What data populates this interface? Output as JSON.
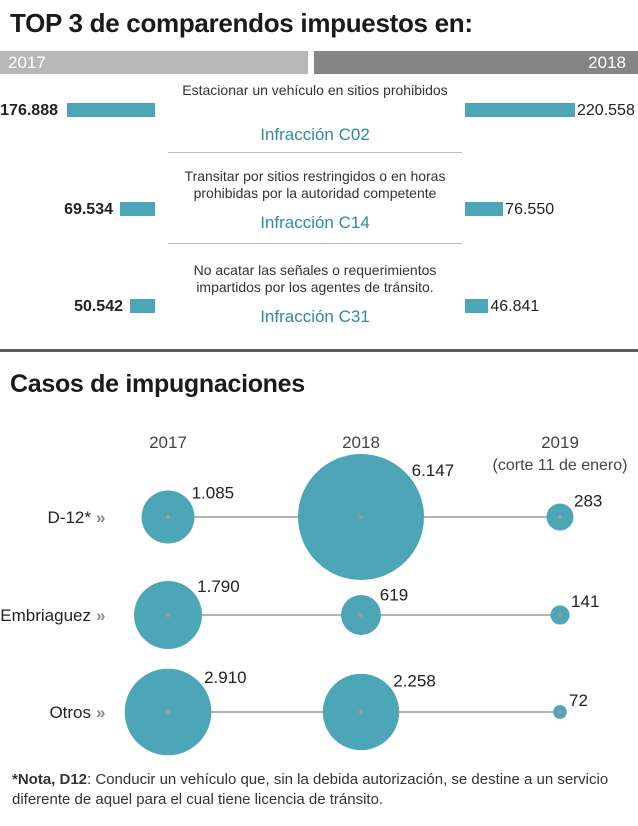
{
  "top": {
    "title": "TOP 3 de comparendos impuestos en:",
    "year_left": "2017",
    "year_right": "2018"
  },
  "chart_data": [
    {
      "type": "bar",
      "title": "TOP 3 de comparendos impuestos en:",
      "categories": [
        "Infracción C02",
        "Infracción C14",
        "Infracción C31"
      ],
      "descriptions": [
        "Estacionar un vehículo en sitios prohibidos",
        "Transitar por sitios restringidos o en horas prohibidas por la autoridad competente",
        "No acatar las señales o requerimientos impartidos por los agentes de tránsito."
      ],
      "series": [
        {
          "name": "2017",
          "values": [
            176888,
            69534,
            50542
          ],
          "labels": [
            "176.888",
            "69.534",
            "50.542"
          ]
        },
        {
          "name": "2018",
          "values": [
            220558,
            76550,
            46841
          ],
          "labels": [
            "220.558",
            "76.550",
            "46.841"
          ]
        }
      ],
      "color": "#4da6b8"
    },
    {
      "type": "scatter",
      "title": "Casos de impugnaciones",
      "x": [
        "2017",
        "2018",
        "2019"
      ],
      "x_sublabels": [
        "",
        "",
        "(corte 11 de enero)"
      ],
      "categories": [
        "D-12*",
        "Embriaguez",
        "Otros"
      ],
      "series": [
        {
          "name": "D-12*",
          "values": [
            1085,
            6147,
            283
          ],
          "labels": [
            "1.085",
            "6.147",
            "283"
          ]
        },
        {
          "name": "Embriaguez",
          "values": [
            1790,
            619,
            141
          ],
          "labels": [
            "1.790",
            "619",
            "141"
          ]
        },
        {
          "name": "Otros",
          "values": [
            2910,
            2258,
            72
          ],
          "labels": [
            "2.910",
            "2.258",
            "72"
          ]
        }
      ],
      "color": "#4da6b8",
      "axis_color": "#888888"
    }
  ],
  "note": {
    "label": "*Nota, D12",
    "text": ": Conducir un vehículo que, sin la debida autorización, se destine a un servicio diferente de aquel para el cual tiene licencia de tránsito."
  }
}
